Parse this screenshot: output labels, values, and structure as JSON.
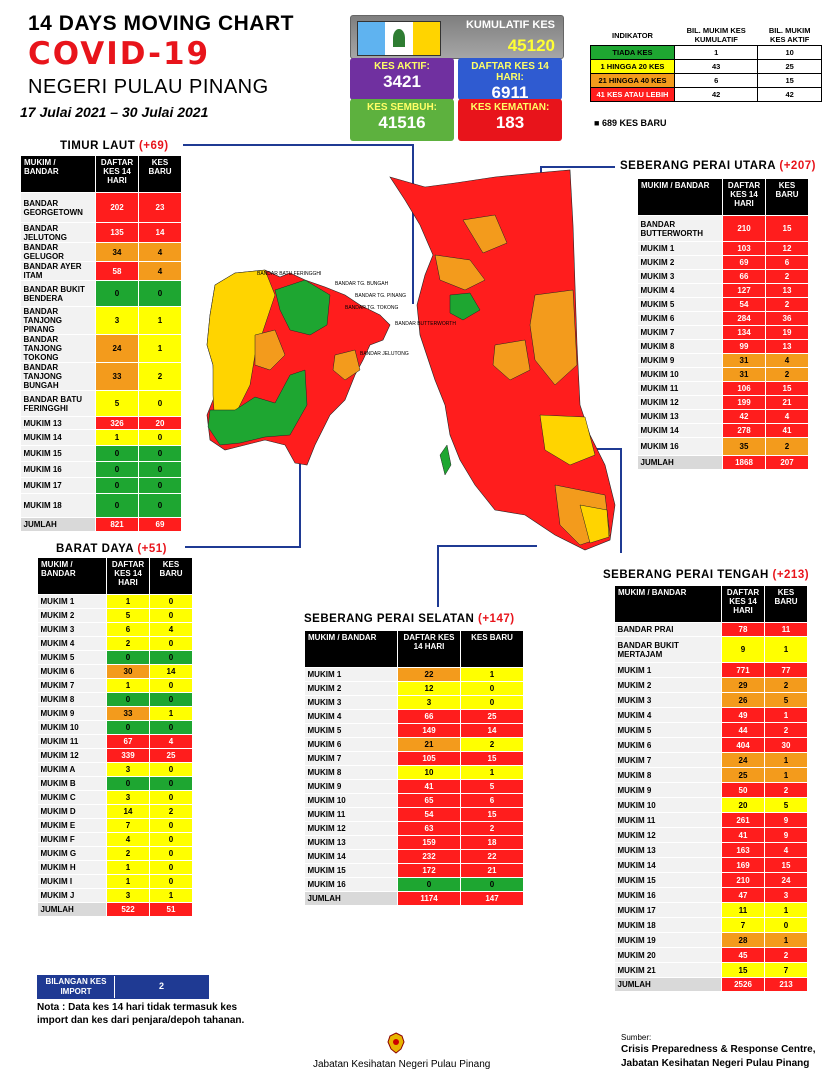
{
  "header": {
    "line1": "14  DAYS MOVING CHART",
    "line2": "COVID-19",
    "line3": "NEGERI PULAU PINANG",
    "dates": "17 Julai 2021 – 30 Julai 2021"
  },
  "stats": {
    "kumulatif_label": "KUMULATIF KES",
    "kumulatif_value": "45120",
    "aktif_label": "KES AKTIF:",
    "aktif_value": "3421",
    "daftar_label": "DAFTAR KES 14 HARI:",
    "daftar_value": "6911",
    "sembuh_label": "KES SEMBUH:",
    "sembuh_value": "41516",
    "kematian_label": "KES KEMATIAN:",
    "kematian_value": "183"
  },
  "legend": {
    "headers": [
      "INDIKATOR",
      "BIL. MUKIM KES KUMULATIF",
      "BIL. MUKIM KES AKTIF"
    ],
    "rows": [
      {
        "label": "TIADA KES",
        "a": "1",
        "b": "10",
        "color": "g"
      },
      {
        "label": "1 HINGGA 20 KES",
        "a": "43",
        "b": "25",
        "color": "y"
      },
      {
        "label": "21 HINGGA 40 KES",
        "a": "6",
        "b": "15",
        "color": "o"
      },
      {
        "label": "41 KES ATAU LEBIH",
        "a": "42",
        "b": "42",
        "color": "r"
      }
    ],
    "new_cases": "689 KES BARU"
  },
  "regions": {
    "timur_laut": {
      "name": "TIMUR LAUT",
      "plus": "(+69)",
      "h1": "MUKIM / BANDAR",
      "h2": "DAFTAR KES 14 HARI",
      "h3": "KES BARU",
      "rows": [
        [
          "BANDAR GEORGETOWN",
          "202",
          "23",
          "r",
          "r",
          30
        ],
        [
          "BANDAR JELUTONG",
          "135",
          "14",
          "r",
          "r",
          20
        ],
        [
          "BANDAR GELUGOR",
          "34",
          "4",
          "o",
          "o",
          13
        ],
        [
          "BANDAR AYER ITAM",
          "58",
          "4",
          "r",
          "o",
          13
        ],
        [
          "BANDAR BUKIT BENDERA",
          "0",
          "0",
          "g",
          "g",
          26
        ],
        [
          "BANDAR TANJONG PINANG",
          "3",
          "1",
          "y",
          "y",
          27
        ],
        [
          "BANDAR TANJONG TOKONG",
          "24",
          "1",
          "o",
          "y",
          26
        ],
        [
          "BANDAR TANJONG BUNGAH",
          "33",
          "2",
          "o",
          "y",
          25
        ],
        [
          "BANDAR BATU FERINGGHI",
          "5",
          "0",
          "y",
          "y",
          26
        ],
        [
          "MUKIM 13",
          "326",
          "20",
          "r",
          "r",
          13
        ],
        [
          "MUKIM 14",
          "1",
          "0",
          "y",
          "y",
          16
        ],
        [
          "MUKIM 15",
          "0",
          "0",
          "g",
          "g",
          16
        ],
        [
          "MUKIM 16",
          "0",
          "0",
          "g",
          "g",
          16
        ],
        [
          "MUKIM 17",
          "0",
          "0",
          "g",
          "g",
          16
        ],
        [
          "MUKIM 18",
          "0",
          "0",
          "g",
          "g",
          24
        ]
      ],
      "total": [
        "JUMLAH",
        "821",
        "69"
      ]
    },
    "barat_daya": {
      "name": "BARAT DAYA",
      "plus": "(+51)",
      "h1": "MUKIM / BANDAR",
      "h2": "DAFTAR KES 14 HARI",
      "h3": "KES BARU",
      "rows": [
        [
          "MUKIM 1",
          "1",
          "0",
          "y",
          "y",
          14
        ],
        [
          "MUKIM 2",
          "5",
          "0",
          "y",
          "y",
          14
        ],
        [
          "MUKIM 3",
          "6",
          "4",
          "y",
          "y",
          14
        ],
        [
          "MUKIM 4",
          "2",
          "0",
          "y",
          "y",
          14
        ],
        [
          "MUKIM 5",
          "0",
          "0",
          "g",
          "g",
          14
        ],
        [
          "MUKIM 6",
          "30",
          "14",
          "o",
          "y",
          14
        ],
        [
          "MUKIM 7",
          "1",
          "0",
          "y",
          "y",
          14
        ],
        [
          "MUKIM 8",
          "0",
          "0",
          "g",
          "g",
          14
        ],
        [
          "MUKIM 9",
          "33",
          "1",
          "o",
          "y",
          14
        ],
        [
          "MUKIM 10",
          "0",
          "0",
          "g",
          "g",
          14
        ],
        [
          "MUKIM 11",
          "67",
          "4",
          "r",
          "r",
          14
        ],
        [
          "MUKIM 12",
          "339",
          "25",
          "r",
          "r",
          14
        ],
        [
          "MUKIM A",
          "3",
          "0",
          "y",
          "y",
          14
        ],
        [
          "MUKIM B",
          "0",
          "0",
          "g",
          "g",
          14
        ],
        [
          "MUKIM C",
          "3",
          "0",
          "y",
          "y",
          14
        ],
        [
          "MUKIM D",
          "14",
          "2",
          "y",
          "y",
          14
        ],
        [
          "MUKIM E",
          "7",
          "0",
          "y",
          "y",
          14
        ],
        [
          "MUKIM F",
          "4",
          "0",
          "y",
          "y",
          14
        ],
        [
          "MUKIM G",
          "2",
          "0",
          "y",
          "y",
          14
        ],
        [
          "MUKIM H",
          "1",
          "0",
          "y",
          "y",
          14
        ],
        [
          "MUKIM I",
          "1",
          "0",
          "y",
          "y",
          14
        ],
        [
          "MUKIM J",
          "3",
          "1",
          "y",
          "y",
          14
        ]
      ],
      "total": [
        "JUMLAH",
        "522",
        "51"
      ]
    },
    "sps": {
      "name": "SEBERANG PERAI SELATAN",
      "plus": "(+147)",
      "h1": "MUKIM / BANDAR",
      "h2": "DAFTAR KES 14 HARI",
      "h3": "KES BARU",
      "rows": [
        [
          "MUKIM 1",
          "22",
          "1",
          "o",
          "y",
          14
        ],
        [
          "MUKIM 2",
          "12",
          "0",
          "y",
          "y",
          14
        ],
        [
          "MUKIM 3",
          "3",
          "0",
          "y",
          "y",
          14
        ],
        [
          "MUKIM 4",
          "66",
          "25",
          "r",
          "r",
          14
        ],
        [
          "MUKIM 5",
          "149",
          "14",
          "r",
          "r",
          14
        ],
        [
          "MUKIM 6",
          "21",
          "2",
          "o",
          "y",
          14
        ],
        [
          "MUKIM 7",
          "105",
          "15",
          "r",
          "r",
          14
        ],
        [
          "MUKIM 8",
          "10",
          "1",
          "y",
          "y",
          14
        ],
        [
          "MUKIM 9",
          "41",
          "5",
          "r",
          "r",
          14
        ],
        [
          "MUKIM 10",
          "65",
          "6",
          "r",
          "r",
          14
        ],
        [
          "MUKIM 11",
          "54",
          "15",
          "r",
          "r",
          14
        ],
        [
          "MUKIM 12",
          "63",
          "2",
          "r",
          "r",
          14
        ],
        [
          "MUKIM 13",
          "159",
          "18",
          "r",
          "r",
          14
        ],
        [
          "MUKIM 14",
          "232",
          "22",
          "r",
          "r",
          14
        ],
        [
          "MUKIM 15",
          "172",
          "21",
          "r",
          "r",
          14
        ],
        [
          "MUKIM 16",
          "0",
          "0",
          "g",
          "g",
          14
        ]
      ],
      "total": [
        "JUMLAH",
        "1174",
        "147"
      ]
    },
    "spu": {
      "name": "SEBERANG PERAI UTARA",
      "plus": "(+207)",
      "h1": "MUKIM / BANDAR",
      "h2": "DAFTAR KES 14 HARI",
      "h3": "KES BARU",
      "rows": [
        [
          "BANDAR BUTTERWORTH",
          "210",
          "15",
          "r",
          "r",
          26
        ],
        [
          "MUKIM 1",
          "103",
          "12",
          "r",
          "r",
          14
        ],
        [
          "MUKIM 2",
          "69",
          "6",
          "r",
          "r",
          14
        ],
        [
          "MUKIM 3",
          "66",
          "2",
          "r",
          "r",
          14
        ],
        [
          "MUKIM 4",
          "127",
          "13",
          "r",
          "r",
          14
        ],
        [
          "MUKIM 5",
          "54",
          "2",
          "r",
          "r",
          14
        ],
        [
          "MUKIM 6",
          "284",
          "36",
          "r",
          "r",
          14
        ],
        [
          "MUKIM 7",
          "134",
          "19",
          "r",
          "r",
          14
        ],
        [
          "MUKIM 8",
          "99",
          "13",
          "r",
          "r",
          14
        ],
        [
          "MUKIM 9",
          "31",
          "4",
          "o",
          "o",
          14
        ],
        [
          "MUKIM 10",
          "31",
          "2",
          "o",
          "o",
          14
        ],
        [
          "MUKIM 11",
          "106",
          "15",
          "r",
          "r",
          14
        ],
        [
          "MUKIM 12",
          "199",
          "21",
          "r",
          "r",
          14
        ],
        [
          "MUKIM 13",
          "42",
          "4",
          "r",
          "r",
          14
        ],
        [
          "MUKIM 14",
          "278",
          "41",
          "r",
          "r",
          14
        ],
        [
          "MUKIM 16",
          "35",
          "2",
          "o",
          "o",
          18
        ]
      ],
      "total": [
        "JUMLAH",
        "1868",
        "207"
      ]
    },
    "spt": {
      "name": "SEBERANG PERAI TENGAH",
      "plus": "(+213)",
      "h1": "MUKIM / BANDAR",
      "h2": "DAFTAR KES 14 HARI",
      "h3": "KES BARU",
      "rows": [
        [
          "BANDAR PRAI",
          "78",
          "11",
          "r",
          "r",
          14
        ],
        [
          "BANDAR BUKIT MERTAJAM",
          "9",
          "1",
          "y",
          "y",
          26
        ],
        [
          "MUKIM 1",
          "771",
          "77",
          "r",
          "r",
          15
        ],
        [
          "MUKIM 2",
          "29",
          "2",
          "o",
          "o",
          15
        ],
        [
          "MUKIM 3",
          "26",
          "5",
          "o",
          "o",
          15
        ],
        [
          "MUKIM 4",
          "49",
          "1",
          "r",
          "r",
          15
        ],
        [
          "MUKIM 5",
          "44",
          "2",
          "r",
          "r",
          15
        ],
        [
          "MUKIM 6",
          "404",
          "30",
          "r",
          "r",
          15
        ],
        [
          "MUKIM 7",
          "24",
          "1",
          "o",
          "o",
          15
        ],
        [
          "MUKIM 8",
          "25",
          "1",
          "o",
          "o",
          15
        ],
        [
          "MUKIM 9",
          "50",
          "2",
          "r",
          "r",
          15
        ],
        [
          "MUKIM 10",
          "20",
          "5",
          "y",
          "y",
          15
        ],
        [
          "MUKIM 11",
          "261",
          "9",
          "r",
          "r",
          15
        ],
        [
          "MUKIM 12",
          "41",
          "9",
          "r",
          "r",
          15
        ],
        [
          "MUKIM 13",
          "163",
          "4",
          "r",
          "r",
          15
        ],
        [
          "MUKIM 14",
          "169",
          "15",
          "r",
          "r",
          15
        ],
        [
          "MUKIM 15",
          "210",
          "24",
          "r",
          "r",
          15
        ],
        [
          "MUKIM 16",
          "47",
          "3",
          "r",
          "r",
          15
        ],
        [
          "MUKIM 17",
          "11",
          "1",
          "y",
          "y",
          15
        ],
        [
          "MUKIM 18",
          "7",
          "0",
          "y",
          "y",
          15
        ],
        [
          "MUKIM 19",
          "28",
          "1",
          "o",
          "o",
          15
        ],
        [
          "MUKIM 20",
          "45",
          "2",
          "r",
          "r",
          15
        ],
        [
          "MUKIM 21",
          "15",
          "7",
          "y",
          "y",
          15
        ]
      ],
      "total": [
        "JUMLAH",
        "2526",
        "213"
      ]
    }
  },
  "import": {
    "label": "BILANGAN KES IMPORT",
    "value": "2"
  },
  "note": "Nota : Data kes 14 hari tidak termasuk kes import dan kes dari penjara/depoh tahanan.",
  "footer": {
    "dept": "Jabatan Kesihatan Negeri Pulau Pinang",
    "source_label": "Sumber:",
    "source1": "Crisis Preparedness & Response Centre,",
    "source2": "Jabatan Kesihatan Negeri Pulau Pinang"
  },
  "map_labels": {
    "bt_ferringhi": "BANDAR BATU FERINGGHI",
    "tg_bungah": "BANDAR TG. BUNGAH",
    "tg_pinang": "BANDAR TG. PINANG",
    "tg_tokong": "BANDAR TG. TOKONG",
    "jelutong": "BANDAR JELUTONG",
    "butterworth": "BANDAR BUTTERWORTH"
  }
}
